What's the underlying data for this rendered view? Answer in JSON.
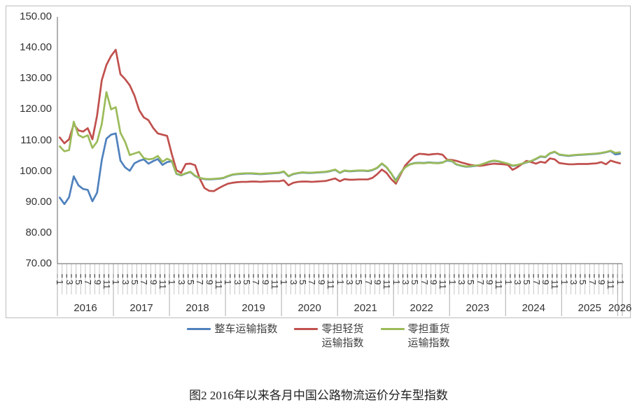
{
  "chart": {
    "y_axis": {
      "labels": [
        "150.00",
        "140.00",
        "130.00",
        "120.00",
        "110.00",
        "100.00",
        "90.00",
        "80.00",
        "70.00"
      ],
      "min": 70,
      "max": 150,
      "step": 10
    },
    "x_axis": {
      "month_label_months": [
        1,
        3,
        5,
        7,
        9,
        11
      ],
      "years": [
        {
          "label": "2016",
          "months": 12
        },
        {
          "label": "2017",
          "months": 12
        },
        {
          "label": "2018",
          "months": 12
        },
        {
          "label": "2019",
          "months": 12
        },
        {
          "label": "2020",
          "months": 12
        },
        {
          "label": "2021",
          "months": 12
        },
        {
          "label": "2022",
          "months": 12
        },
        {
          "label": "2023",
          "months": 12
        },
        {
          "label": "2024",
          "months": 12
        },
        {
          "label": "2025",
          "months": 12
        },
        {
          "label": "2026",
          "months": 1
        }
      ]
    },
    "legend": {
      "items": [
        {
          "line1": "整车运输指数",
          "line2": "",
          "color": "#4F81BD"
        },
        {
          "line1": "零担轻货",
          "line2": "运输指数",
          "color": "#C0504D"
        },
        {
          "line1": "零担重货",
          "line2": "运输指数",
          "color": "#9BBB59"
        }
      ]
    },
    "caption": "图2 2016年以来各月中国公路物流运价分车型指数"
  },
  "chart_data": {
    "type": "line",
    "title": "图2 2016年以来各月中国公路物流运价分车型指数",
    "x_frequency": "monthly",
    "x_start": "2016-01",
    "x_end": "2026-01",
    "ylim": [
      70,
      150
    ],
    "grid": false,
    "legend_position": "bottom",
    "series": [
      {
        "key": "ftl",
        "name": "整车运输指数",
        "color": "#4F81BD",
        "values": [
          91.4,
          89.3,
          91.5,
          98.3,
          95.4,
          94.2,
          93.9,
          90.2,
          93.0,
          103.5,
          110.5,
          111.8,
          112.2,
          103.4,
          101.2,
          100.1,
          102.5,
          103.3,
          103.8,
          102.4,
          103.2,
          103.9,
          102.0,
          102.9,
          103.2,
          99.1,
          98.6,
          99.2,
          99.7,
          98.4,
          97.7,
          97.4,
          97.3,
          97.4,
          97.5,
          97.7,
          98.3,
          98.8,
          99.0,
          99.1,
          99.2,
          99.2,
          99.1,
          99.0,
          99.1,
          99.2,
          99.3,
          99.4,
          99.8,
          98.3,
          99.0,
          99.3,
          99.5,
          99.4,
          99.4,
          99.5,
          99.6,
          99.7,
          100.0,
          100.4,
          99.4,
          100.1,
          99.9,
          100.0,
          100.1,
          100.1,
          100.0,
          100.3,
          101.0,
          102.4,
          101.2,
          99.2,
          97.0,
          99.4,
          101.3,
          102.2,
          102.6,
          102.7,
          102.6,
          102.8,
          102.7,
          102.6,
          102.8,
          103.4,
          103.2,
          102.1,
          101.7,
          101.4,
          101.5,
          101.7,
          101.9,
          102.4,
          103.0,
          103.3,
          103.1,
          102.7,
          102.3,
          101.7,
          101.9,
          102.3,
          102.8,
          103.2,
          103.9,
          104.7,
          104.5,
          105.7,
          106.2,
          105.3,
          105.1,
          104.9,
          105.1,
          105.2,
          105.3,
          105.4,
          105.5,
          105.6,
          105.8,
          106.1,
          106.5,
          105.4,
          105.6
        ]
      },
      {
        "key": "ltl_light",
        "name": "零担轻货运输指数",
        "color": "#C0504D",
        "values": [
          110.9,
          109.0,
          110.3,
          115.2,
          113.2,
          112.8,
          113.9,
          110.3,
          118.0,
          129.4,
          134.4,
          137.3,
          139.3,
          131.4,
          129.8,
          127.8,
          124.5,
          119.8,
          117.4,
          116.5,
          114.0,
          112.2,
          111.8,
          111.4,
          105.5,
          100.3,
          99.4,
          102.3,
          102.4,
          101.9,
          97.5,
          94.5,
          93.6,
          93.5,
          94.4,
          95.2,
          95.9,
          96.2,
          96.4,
          96.5,
          96.5,
          96.6,
          96.6,
          96.5,
          96.6,
          96.7,
          96.7,
          96.7,
          97.0,
          95.4,
          96.2,
          96.5,
          96.6,
          96.6,
          96.5,
          96.6,
          96.7,
          96.8,
          97.2,
          97.6,
          96.7,
          97.4,
          97.2,
          97.2,
          97.3,
          97.3,
          97.3,
          97.8,
          99.0,
          100.5,
          99.4,
          97.4,
          95.9,
          98.9,
          101.8,
          103.4,
          104.9,
          105.6,
          105.5,
          105.3,
          105.5,
          105.6,
          105.3,
          103.7,
          103.6,
          103.3,
          102.8,
          102.4,
          102.0,
          101.8,
          101.7,
          101.9,
          102.2,
          102.4,
          102.3,
          102.2,
          102.0,
          100.4,
          101.2,
          102.3,
          103.3,
          102.9,
          102.4,
          103.0,
          102.7,
          104.1,
          103.8,
          102.6,
          102.4,
          102.2,
          102.2,
          102.3,
          102.3,
          102.3,
          102.4,
          102.5,
          102.9,
          102.2,
          103.4,
          102.9,
          102.5
        ]
      },
      {
        "key": "ltl_heavy",
        "name": "零担重货运输指数",
        "color": "#9BBB59",
        "values": [
          108.0,
          106.4,
          106.8,
          116.0,
          111.7,
          110.9,
          111.6,
          107.5,
          109.5,
          115.2,
          125.6,
          120.0,
          120.7,
          112.4,
          109.5,
          105.2,
          105.7,
          106.2,
          104.2,
          103.8,
          104.0,
          104.9,
          103.0,
          104.0,
          103.3,
          99.2,
          98.7,
          99.3,
          99.8,
          98.5,
          97.8,
          97.5,
          97.4,
          97.5,
          97.6,
          97.8,
          98.4,
          98.9,
          99.1,
          99.2,
          99.3,
          99.3,
          99.2,
          99.1,
          99.2,
          99.3,
          99.4,
          99.5,
          99.9,
          98.4,
          99.1,
          99.4,
          99.6,
          99.5,
          99.5,
          99.6,
          99.7,
          99.8,
          100.1,
          100.5,
          99.5,
          100.2,
          100.0,
          100.1,
          100.2,
          100.2,
          100.1,
          100.4,
          101.1,
          102.5,
          101.3,
          99.3,
          96.6,
          99.3,
          101.2,
          102.1,
          102.5,
          102.6,
          102.5,
          102.7,
          102.6,
          102.5,
          102.7,
          103.6,
          103.3,
          102.2,
          101.8,
          101.5,
          101.6,
          101.8,
          102.0,
          102.5,
          103.1,
          103.4,
          103.2,
          102.8,
          102.4,
          101.8,
          102.0,
          102.4,
          102.9,
          103.3,
          104.0,
          104.8,
          104.6,
          105.8,
          106.3,
          105.4,
          105.2,
          105.0,
          105.2,
          105.3,
          105.4,
          105.5,
          105.6,
          105.7,
          105.9,
          106.2,
          106.6,
          105.9,
          106.1
        ]
      }
    ]
  }
}
